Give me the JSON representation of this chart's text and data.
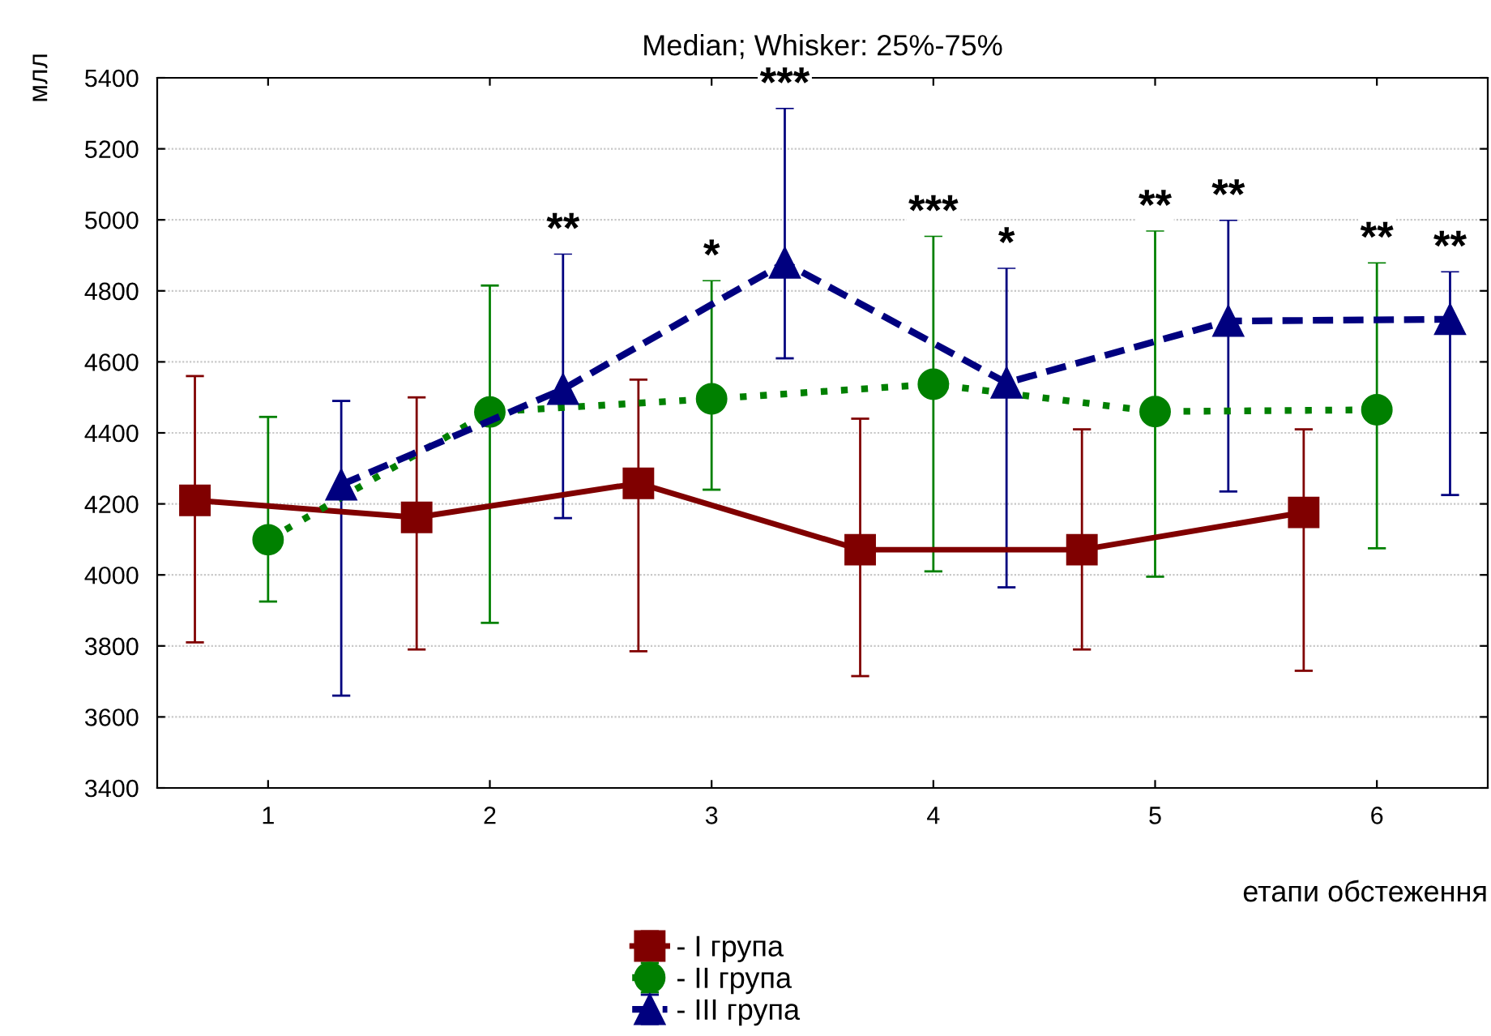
{
  "chart_data": {
    "type": "line",
    "title": "Median; Whisker: 25%-75%",
    "xlabel": "етапи обстеження",
    "ylabel": "млл",
    "xlim": [
      0.5,
      6.5
    ],
    "xticks": [
      1,
      2,
      3,
      4,
      5,
      6
    ],
    "ylim": [
      3400,
      5400
    ],
    "yticks": [
      3400,
      3600,
      3800,
      4000,
      4200,
      4400,
      4600,
      4800,
      5000,
      5200,
      5400
    ],
    "grid": "y",
    "legend": "bottom",
    "series": [
      {
        "name": "- I група",
        "color": "#800000",
        "marker": "square",
        "line_style": "solid",
        "x": [
          0.67,
          1.67,
          2.67,
          3.67,
          4.67,
          5.67
        ],
        "values": [
          4210,
          4162,
          4258,
          4071,
          4071,
          4176
        ],
        "errors": [
          [
            3810,
            4560
          ],
          [
            3790,
            4500
          ],
          [
            3785,
            4550
          ],
          [
            3715,
            4440
          ],
          [
            3790,
            4410
          ],
          [
            3730,
            4410
          ]
        ]
      },
      {
        "name": "- II група",
        "color": "#008000",
        "marker": "circle",
        "line_style": "dotted",
        "x": [
          1,
          2,
          3,
          4,
          5,
          6
        ],
        "values": [
          4099,
          4459,
          4496,
          4537,
          4460,
          4465
        ],
        "errors": [
          [
            3925,
            4445
          ],
          [
            3865,
            4815
          ],
          [
            4240,
            4830
          ],
          [
            4010,
            4955
          ],
          [
            3995,
            4970
          ],
          [
            4075,
            4880
          ]
        ]
      },
      {
        "name": "- III група",
        "color": "#00007f",
        "marker": "triangle",
        "line_style": "dashed",
        "x": [
          1.33,
          2.33,
          3.33,
          4.33,
          5.33,
          6.33
        ],
        "values": [
          4254,
          4523,
          4879,
          4541,
          4715,
          4720
        ],
        "errors": [
          [
            3660,
            4490
          ],
          [
            4160,
            4905
          ],
          [
            4610,
            5315
          ],
          [
            3965,
            4865
          ],
          [
            4235,
            5000
          ],
          [
            4225,
            4855
          ]
        ]
      }
    ],
    "annotations": [
      {
        "text": "**",
        "x": 2.33,
        "y": 4905
      },
      {
        "text": "*",
        "x": 3,
        "y": 4830
      },
      {
        "text": "***",
        "x": 3.33,
        "y": 5315
      },
      {
        "text": "***",
        "x": 4,
        "y": 4955
      },
      {
        "text": "*",
        "x": 4.33,
        "y": 4865
      },
      {
        "text": "**",
        "x": 5,
        "y": 4970
      },
      {
        "text": "**",
        "x": 5.33,
        "y": 5000
      },
      {
        "text": "**",
        "x": 6,
        "y": 4880
      },
      {
        "text": "**",
        "x": 6.33,
        "y": 4855
      }
    ]
  }
}
